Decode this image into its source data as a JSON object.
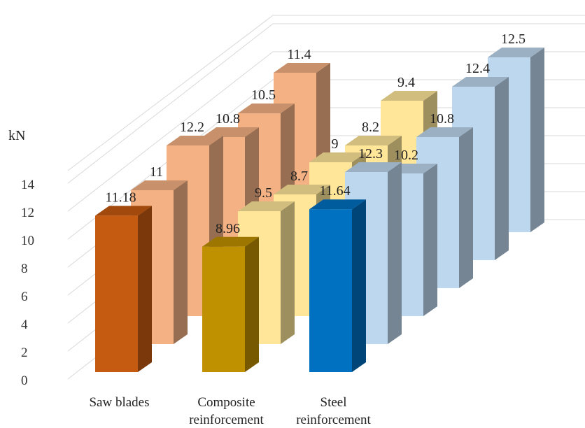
{
  "chart_data": {
    "type": "bar",
    "ylabel": "kN",
    "ylim": [
      0,
      14
    ],
    "yticks": [
      "0",
      "2",
      "4",
      "6",
      "8",
      "10",
      "12",
      "14"
    ],
    "categories": [
      "Saw blades",
      "Composite reinforcement",
      "Steel reinforcement"
    ],
    "category_labels": [
      [
        "Saw blades"
      ],
      [
        "Composite",
        "reinforcement"
      ],
      [
        "Steel",
        "reinforcement"
      ]
    ],
    "series": [
      {
        "values": [
          11.18,
          8.96,
          11.64
        ],
        "labels": [
          "11.18",
          "8.96",
          "11.64"
        ]
      },
      {
        "values": [
          11,
          9.5,
          12.3
        ],
        "labels": [
          "11",
          "9.5",
          "12.3"
        ]
      },
      {
        "values": [
          12.2,
          8.7,
          10.2
        ],
        "labels": [
          "12.2",
          "8.7",
          "10.2"
        ]
      },
      {
        "values": [
          10.8,
          9,
          10.8
        ],
        "labels": [
          "10.8",
          "9",
          "10.8"
        ]
      },
      {
        "values": [
          10.5,
          8.2,
          12.4
        ],
        "labels": [
          "10.5",
          "8.2",
          "12.4"
        ]
      },
      {
        "values": [
          11.4,
          9.4,
          12.5
        ],
        "labels": [
          "11.4",
          "9.4",
          "12.5"
        ]
      }
    ],
    "grid": true,
    "colors": {
      "saw_front": "#c55a11",
      "saw_back": "#f4b183",
      "composite_front": "#bf9000",
      "composite_back": "#ffe699",
      "steel_front": "#0070c0",
      "steel_back": "#bdd7ee"
    }
  }
}
